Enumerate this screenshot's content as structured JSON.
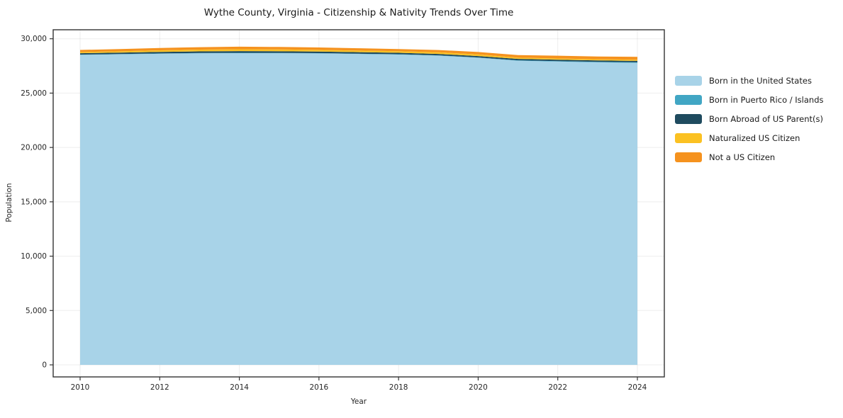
{
  "chart_data": {
    "type": "area",
    "title": "Wythe County, Virginia - Citizenship & Nativity Trends Over Time",
    "xlabel": "Year",
    "ylabel": "Population",
    "x": [
      2010,
      2011,
      2012,
      2013,
      2014,
      2015,
      2016,
      2017,
      2018,
      2019,
      2020,
      2021,
      2022,
      2023,
      2024
    ],
    "series": [
      {
        "name": "Born in the United States",
        "color": "#A8D3E8",
        "values": [
          28520,
          28570,
          28620,
          28660,
          28680,
          28670,
          28650,
          28600,
          28550,
          28450,
          28250,
          27980,
          27900,
          27830,
          27780
        ]
      },
      {
        "name": "Born in Puerto Rico / Islands",
        "color": "#41A6C4",
        "values": [
          25,
          25,
          30,
          30,
          30,
          30,
          25,
          25,
          25,
          25,
          30,
          40,
          45,
          50,
          60
        ]
      },
      {
        "name": "Born Abroad of US Parent(s)",
        "color": "#1F4B5F",
        "values": [
          125,
          130,
          140,
          150,
          155,
          150,
          145,
          140,
          135,
          130,
          125,
          130,
          130,
          125,
          125
        ]
      },
      {
        "name": "Naturalized US Citizen",
        "color": "#FBC122",
        "values": [
          110,
          125,
          145,
          160,
          170,
          165,
          160,
          150,
          145,
          150,
          155,
          110,
          115,
          110,
          110
        ]
      },
      {
        "name": "Not a US Citizen",
        "color": "#F5921E",
        "values": [
          190,
          200,
          215,
          225,
          235,
          230,
          220,
          210,
          200,
          210,
          225,
          240,
          250,
          255,
          260
        ]
      }
    ],
    "x_ticks": [
      2010,
      2012,
      2014,
      2016,
      2018,
      2020,
      2022,
      2024
    ],
    "x_tick_labels": [
      "2010",
      "2012",
      "2014",
      "2016",
      "2018",
      "2020",
      "2022",
      "2024"
    ],
    "y_ticks": [
      0,
      5000,
      10000,
      15000,
      20000,
      25000,
      30000
    ],
    "y_tick_labels": [
      "0",
      "5,000",
      "10,000",
      "15,000",
      "20,000",
      "25,000",
      "30,000"
    ],
    "ylim": [
      0,
      30000
    ],
    "grid": true,
    "legend_position": "right",
    "colors": {
      "grid": "rgba(0,0,0,0.07)",
      "spine": "#333333",
      "tick": "#333333",
      "tick_label": "#262626",
      "background": "#ffffff"
    }
  }
}
